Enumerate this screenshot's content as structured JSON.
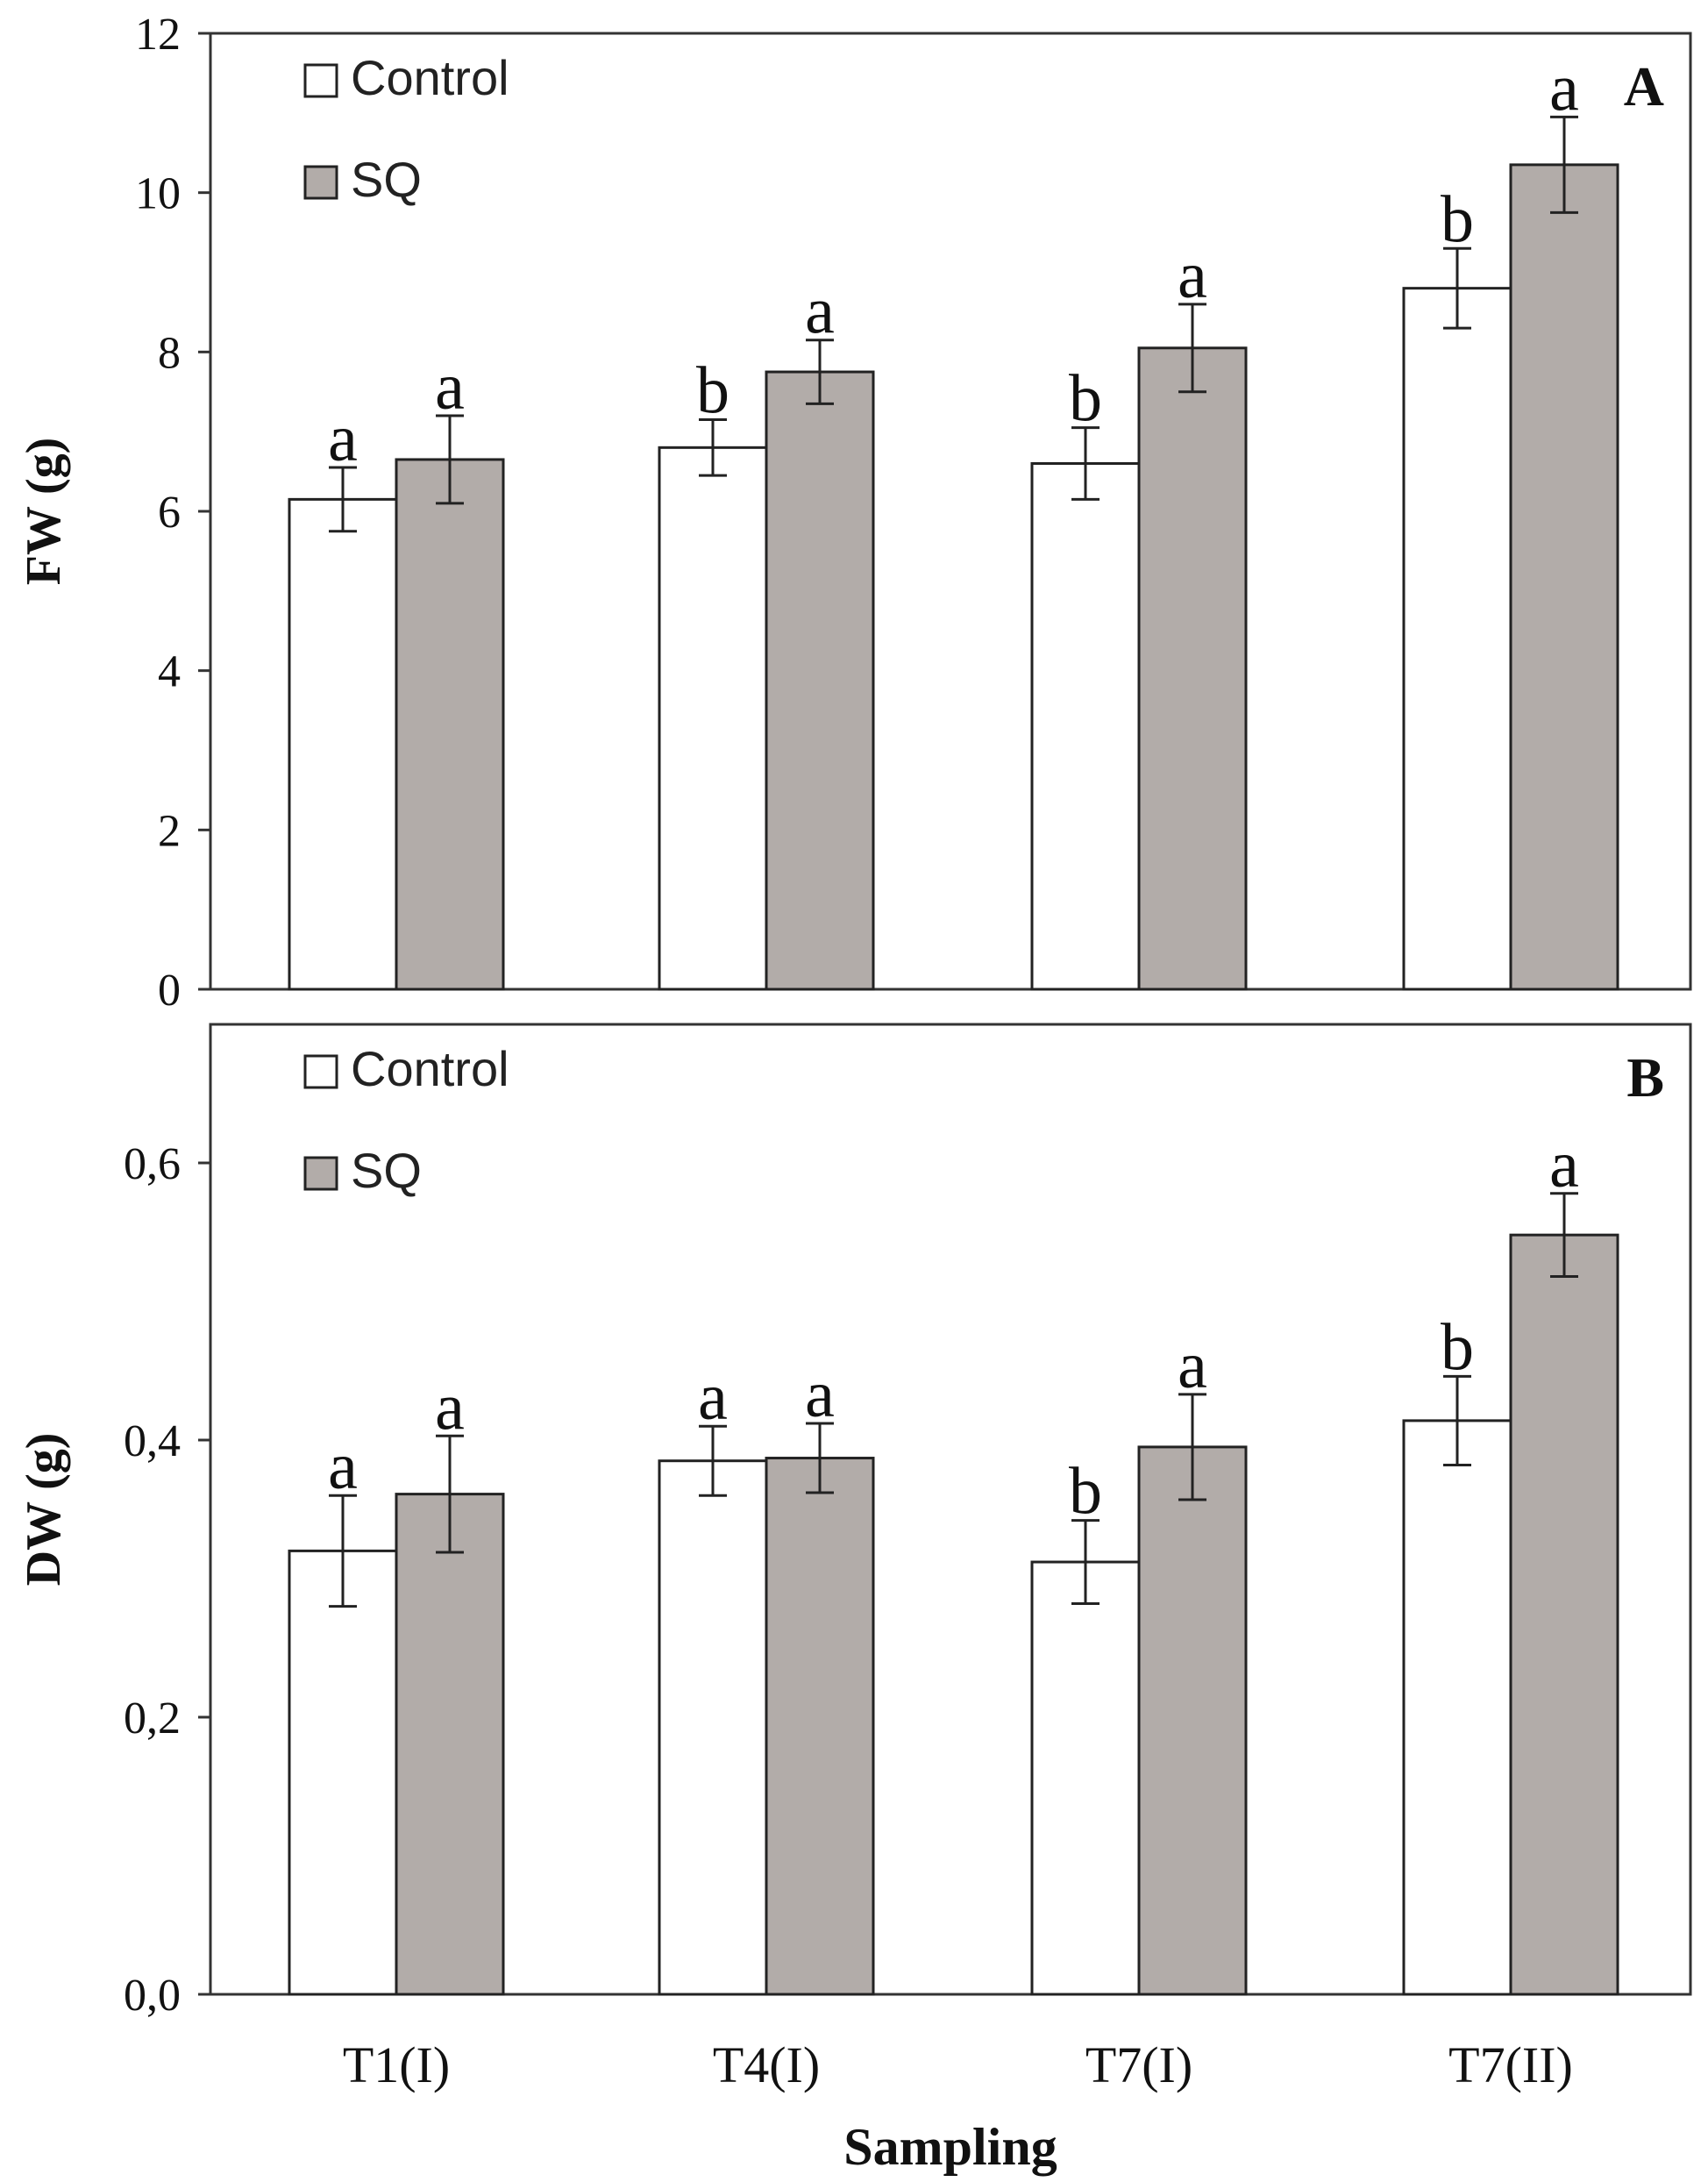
{
  "chart_data": [
    {
      "type": "bar",
      "panel": "A",
      "categories": [
        "T1(I)",
        "T4(I)",
        "T7(I)",
        "T7(II)"
      ],
      "ylabel": "FW (g)",
      "xlabel": "",
      "ylim": [
        0,
        12
      ],
      "yticks": [
        "0",
        "2",
        "4",
        "6",
        "8",
        "10",
        "12"
      ],
      "legend": [
        "Control",
        "SQ"
      ],
      "legend_position": "top-left",
      "series": [
        {
          "name": "Control",
          "color": "#ffffff",
          "values": [
            6.15,
            6.8,
            6.6,
            8.8
          ],
          "errors": [
            0.4,
            0.35,
            0.45,
            0.5
          ],
          "letters": [
            "a",
            "b",
            "b",
            "b"
          ]
        },
        {
          "name": "SQ",
          "color": "#b2aca9",
          "values": [
            6.65,
            7.75,
            8.05,
            10.35
          ],
          "errors": [
            0.55,
            0.4,
            0.55,
            0.6
          ],
          "letters": [
            "a",
            "a",
            "a",
            "a"
          ]
        }
      ]
    },
    {
      "type": "bar",
      "panel": "B",
      "categories": [
        "T1(I)",
        "T4(I)",
        "T7(I)",
        "T7(II)"
      ],
      "ylabel": "DW (g)",
      "xlabel": "Sampling",
      "ylim": [
        0,
        0.7
      ],
      "yticks": [
        "0,0",
        "0,2",
        "0,4",
        "0,6"
      ],
      "legend": [
        "Control",
        "SQ"
      ],
      "legend_position": "top-left",
      "series": [
        {
          "name": "Control",
          "color": "#ffffff",
          "values": [
            0.32,
            0.385,
            0.312,
            0.414
          ],
          "errors": [
            0.04,
            0.025,
            0.03,
            0.032
          ],
          "letters": [
            "a",
            "a",
            "b",
            "b"
          ]
        },
        {
          "name": "SQ",
          "color": "#b2aca9",
          "values": [
            0.361,
            0.387,
            0.395,
            0.548
          ],
          "errors": [
            0.042,
            0.025,
            0.038,
            0.03
          ],
          "letters": [
            "a",
            "a",
            "a",
            "a"
          ]
        }
      ]
    }
  ]
}
